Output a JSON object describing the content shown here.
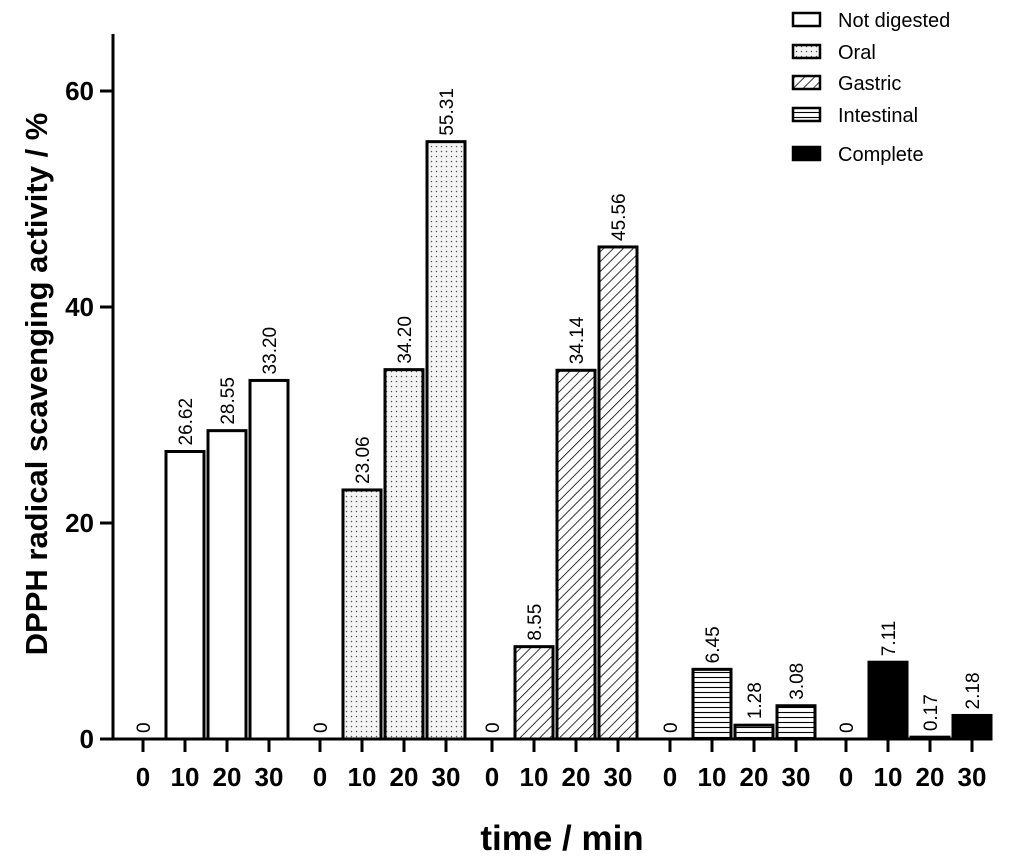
{
  "chart_data": {
    "type": "bar",
    "title": "",
    "xlabel": "time / min",
    "ylabel": "DPPH radical scavenging activity / %",
    "ylim": [
      0,
      65
    ],
    "yticks": [
      "0",
      "20",
      "40",
      "60"
    ],
    "categories": [
      "0",
      "10",
      "20",
      "30"
    ],
    "legend_position": "top-right",
    "series": [
      {
        "name": "Not digested",
        "pattern": "none",
        "values": [
          0,
          26.62,
          28.55,
          33.2
        ],
        "labels": [
          "0",
          "26.62",
          "28.55",
          "33.20"
        ]
      },
      {
        "name": "Oral",
        "pattern": "dots",
        "values": [
          0,
          23.06,
          34.2,
          55.31
        ],
        "labels": [
          "0",
          "23.06",
          "34.20",
          "55.31"
        ]
      },
      {
        "name": "Gastric",
        "pattern": "diagonal",
        "values": [
          0,
          8.55,
          34.14,
          45.56
        ],
        "labels": [
          "0",
          "8.55",
          "34.14",
          "45.56"
        ]
      },
      {
        "name": "Intestinal",
        "pattern": "horizontal",
        "values": [
          0,
          6.45,
          1.28,
          3.08
        ],
        "labels": [
          "0",
          "6.45",
          "1.28",
          "3.08"
        ]
      },
      {
        "name": "Complete",
        "pattern": "solid",
        "values": [
          0,
          7.11,
          0.17,
          2.18
        ],
        "labels": [
          "0",
          "7.11",
          "0.17",
          "2.18"
        ]
      }
    ]
  }
}
